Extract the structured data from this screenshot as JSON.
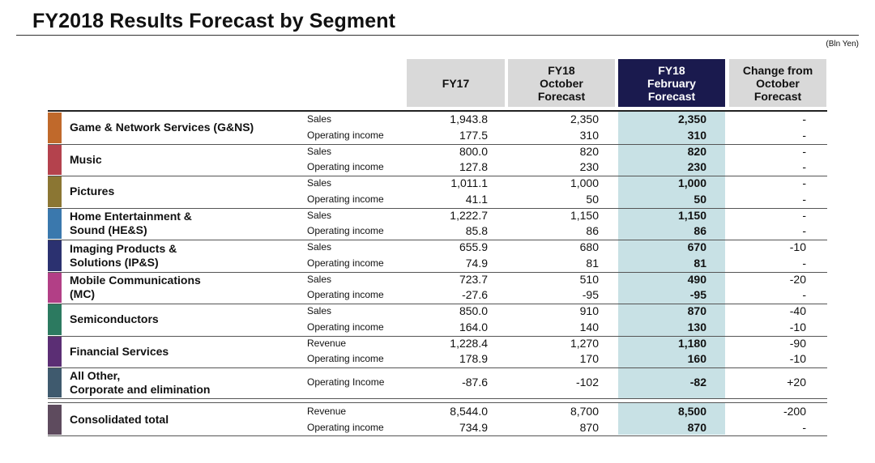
{
  "title": "FY2018 Results Forecast by Segment",
  "unit": "(Bln Yen)",
  "headers": {
    "fy17": "FY17",
    "oct": [
      "FY18",
      "October",
      "Forecast"
    ],
    "feb": [
      "FY18",
      "February",
      "Forecast"
    ],
    "chg": [
      "Change from",
      "October",
      "Forecast"
    ]
  },
  "colors": {
    "header_gray": "#d9d9d9",
    "header_dark": "#1a1a4e",
    "highlight": "#c8e1e5"
  },
  "segments": [
    {
      "name": [
        "Game & Network Services (G&NS)"
      ],
      "color": "#c0692b",
      "rows": [
        {
          "item": "Sales",
          "fy17": "1,943.8",
          "oct": "2,350",
          "feb": "2,350",
          "chg": "-"
        },
        {
          "item": "Operating income",
          "fy17": "177.5",
          "oct": "310",
          "feb": "310",
          "chg": "-"
        }
      ]
    },
    {
      "name": [
        "Music"
      ],
      "color": "#b4424d",
      "rows": [
        {
          "item": "Sales",
          "fy17": "800.0",
          "oct": "820",
          "feb": "820",
          "chg": "-"
        },
        {
          "item": "Operating income",
          "fy17": "127.8",
          "oct": "230",
          "feb": "230",
          "chg": "-"
        }
      ]
    },
    {
      "name": [
        "Pictures"
      ],
      "color": "#8b7633",
      "rows": [
        {
          "item": "Sales",
          "fy17": "1,011.1",
          "oct": "1,000",
          "feb": "1,000",
          "chg": "-"
        },
        {
          "item": "Operating income",
          "fy17": "41.1",
          "oct": "50",
          "feb": "50",
          "chg": "-"
        }
      ]
    },
    {
      "name": [
        "Home Entertainment &",
        "Sound (HE&S)"
      ],
      "color": "#3a78ad",
      "rows": [
        {
          "item": "Sales",
          "fy17": "1,222.7",
          "oct": "1,150",
          "feb": "1,150",
          "chg": "-"
        },
        {
          "item": "Operating income",
          "fy17": "85.8",
          "oct": "86",
          "feb": "86",
          "chg": "-"
        }
      ]
    },
    {
      "name": [
        "Imaging Products &",
        "Solutions (IP&S)"
      ],
      "color": "#2b3170",
      "rows": [
        {
          "item": "Sales",
          "fy17": "655.9",
          "oct": "680",
          "feb": "670",
          "chg": "-10"
        },
        {
          "item": "Operating income",
          "fy17": "74.9",
          "oct": "81",
          "feb": "81",
          "chg": "-"
        }
      ]
    },
    {
      "name": [
        "Mobile Communications",
        "(MC)"
      ],
      "color": "#b23f86",
      "rows": [
        {
          "item": "Sales",
          "fy17": "723.7",
          "oct": "510",
          "feb": "490",
          "chg": "-20"
        },
        {
          "item": "Operating income",
          "fy17": "-27.6",
          "oct": "-95",
          "feb": "-95",
          "chg": "-"
        }
      ]
    },
    {
      "name": [
        "Semiconductors"
      ],
      "color": "#2c7a60",
      "rows": [
        {
          "item": "Sales",
          "fy17": "850.0",
          "oct": "910",
          "feb": "870",
          "chg": "-40"
        },
        {
          "item": "Operating income",
          "fy17": "164.0",
          "oct": "140",
          "feb": "130",
          "chg": "-10"
        }
      ]
    },
    {
      "name": [
        "Financial Services"
      ],
      "color": "#5b2e74",
      "rows": [
        {
          "item": "Revenue",
          "fy17": "1,228.4",
          "oct": "1,270",
          "feb": "1,180",
          "chg": "-90"
        },
        {
          "item": "Operating income",
          "fy17": "178.9",
          "oct": "170",
          "feb": "160",
          "chg": "-10"
        }
      ]
    },
    {
      "name": [
        "All Other,",
        "Corporate and elimination"
      ],
      "color": "#3f5a6e",
      "rows": [
        {
          "item": "Operating Income",
          "fy17": "-87.6",
          "oct": "-102",
          "feb": "-82",
          "chg": "+20"
        }
      ]
    }
  ],
  "total": {
    "name": [
      "Consolidated total"
    ],
    "color": "#5e4b5e",
    "rows": [
      {
        "item": "Revenue",
        "fy17": "8,544.0",
        "oct": "8,700",
        "feb": "8,500",
        "chg": "-200"
      },
      {
        "item": "Operating income",
        "fy17": "734.9",
        "oct": "870",
        "feb": "870",
        "chg": "-"
      }
    ]
  }
}
